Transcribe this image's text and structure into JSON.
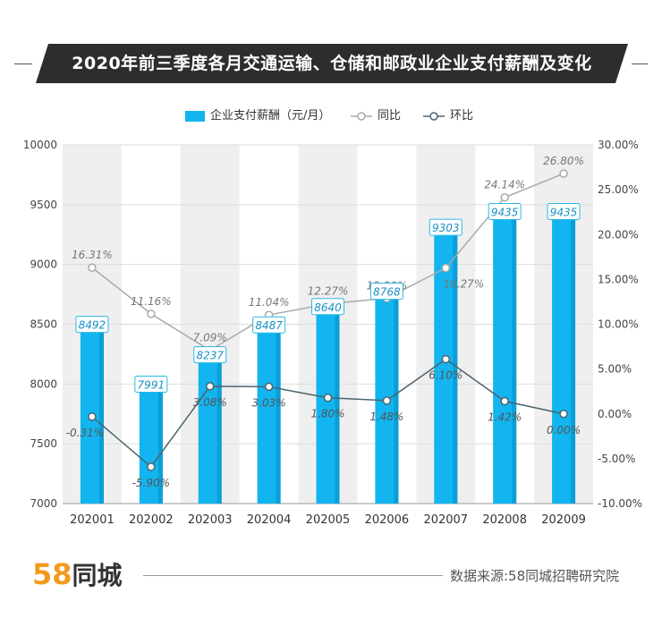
{
  "title": "2020年前三季度各月交通运输、仓储和邮政业企业支付薪酬及变化",
  "legend": {
    "salary": "企业支付薪酬（元/月）",
    "yoy": "同比",
    "mom": "环比"
  },
  "colors": {
    "bar": "#12b5ef",
    "bar_dark": "#0a9fd8",
    "yoy_line": "#aaaaaa",
    "mom_line": "#4d6470",
    "band": "#efefef",
    "title_bg": "#2d2d2d"
  },
  "chart_data": {
    "type": "bar+line",
    "categories": [
      "202001",
      "202002",
      "202003",
      "202004",
      "202005",
      "202006",
      "202007",
      "202008",
      "202009"
    ],
    "series": [
      {
        "name": "企业支付薪酬（元/月）",
        "type": "bar",
        "axis": "left",
        "values": [
          8492,
          7991,
          8237,
          8487,
          8640,
          8768,
          9303,
          9435,
          9435
        ],
        "labels": [
          "8492",
          "7991",
          "8237",
          "8487",
          "8640",
          "8768",
          "9303",
          "9435",
          "9435"
        ]
      },
      {
        "name": "同比",
        "type": "line",
        "axis": "right",
        "values": [
          16.31,
          11.16,
          7.09,
          11.04,
          12.27,
          12.9,
          16.27,
          24.14,
          26.8
        ],
        "labels": [
          "16.31%",
          "11.16%",
          "7.09%",
          "11.04%",
          "12.27%",
          "12.90%",
          "16.27%",
          "24.14%",
          "26.80%"
        ]
      },
      {
        "name": "环比",
        "type": "line",
        "axis": "right",
        "values": [
          -0.31,
          -5.9,
          3.08,
          3.03,
          1.8,
          1.48,
          6.1,
          1.42,
          0.0
        ],
        "labels": [
          "-0.31%",
          "-5.90%",
          "3.08%",
          "3.03%",
          "1.80%",
          "1.48%",
          "6.10%",
          "1.42%",
          "0.00%"
        ]
      }
    ],
    "y_left": {
      "min": 7000,
      "max": 10000,
      "ticks": [
        7000,
        7500,
        8000,
        8500,
        9000,
        9500,
        10000
      ],
      "tick_labels": [
        "7000",
        "7500",
        "8000",
        "8500",
        "9000",
        "9500",
        "10000"
      ]
    },
    "y_right": {
      "min": -10,
      "max": 30,
      "ticks": [
        -10,
        -5,
        0,
        5,
        10,
        15,
        20,
        25,
        30
      ],
      "tick_labels": [
        "-10.00%",
        "-5.00%",
        "0.00%",
        "5.00%",
        "10.00%",
        "15.00%",
        "20.00%",
        "25.00%",
        "30.00%"
      ]
    },
    "legend_position": "top-center",
    "grid": true
  },
  "footer": {
    "logo_number": "58",
    "logo_text": "同城",
    "source": "数据来源:58同城招聘研究院"
  }
}
